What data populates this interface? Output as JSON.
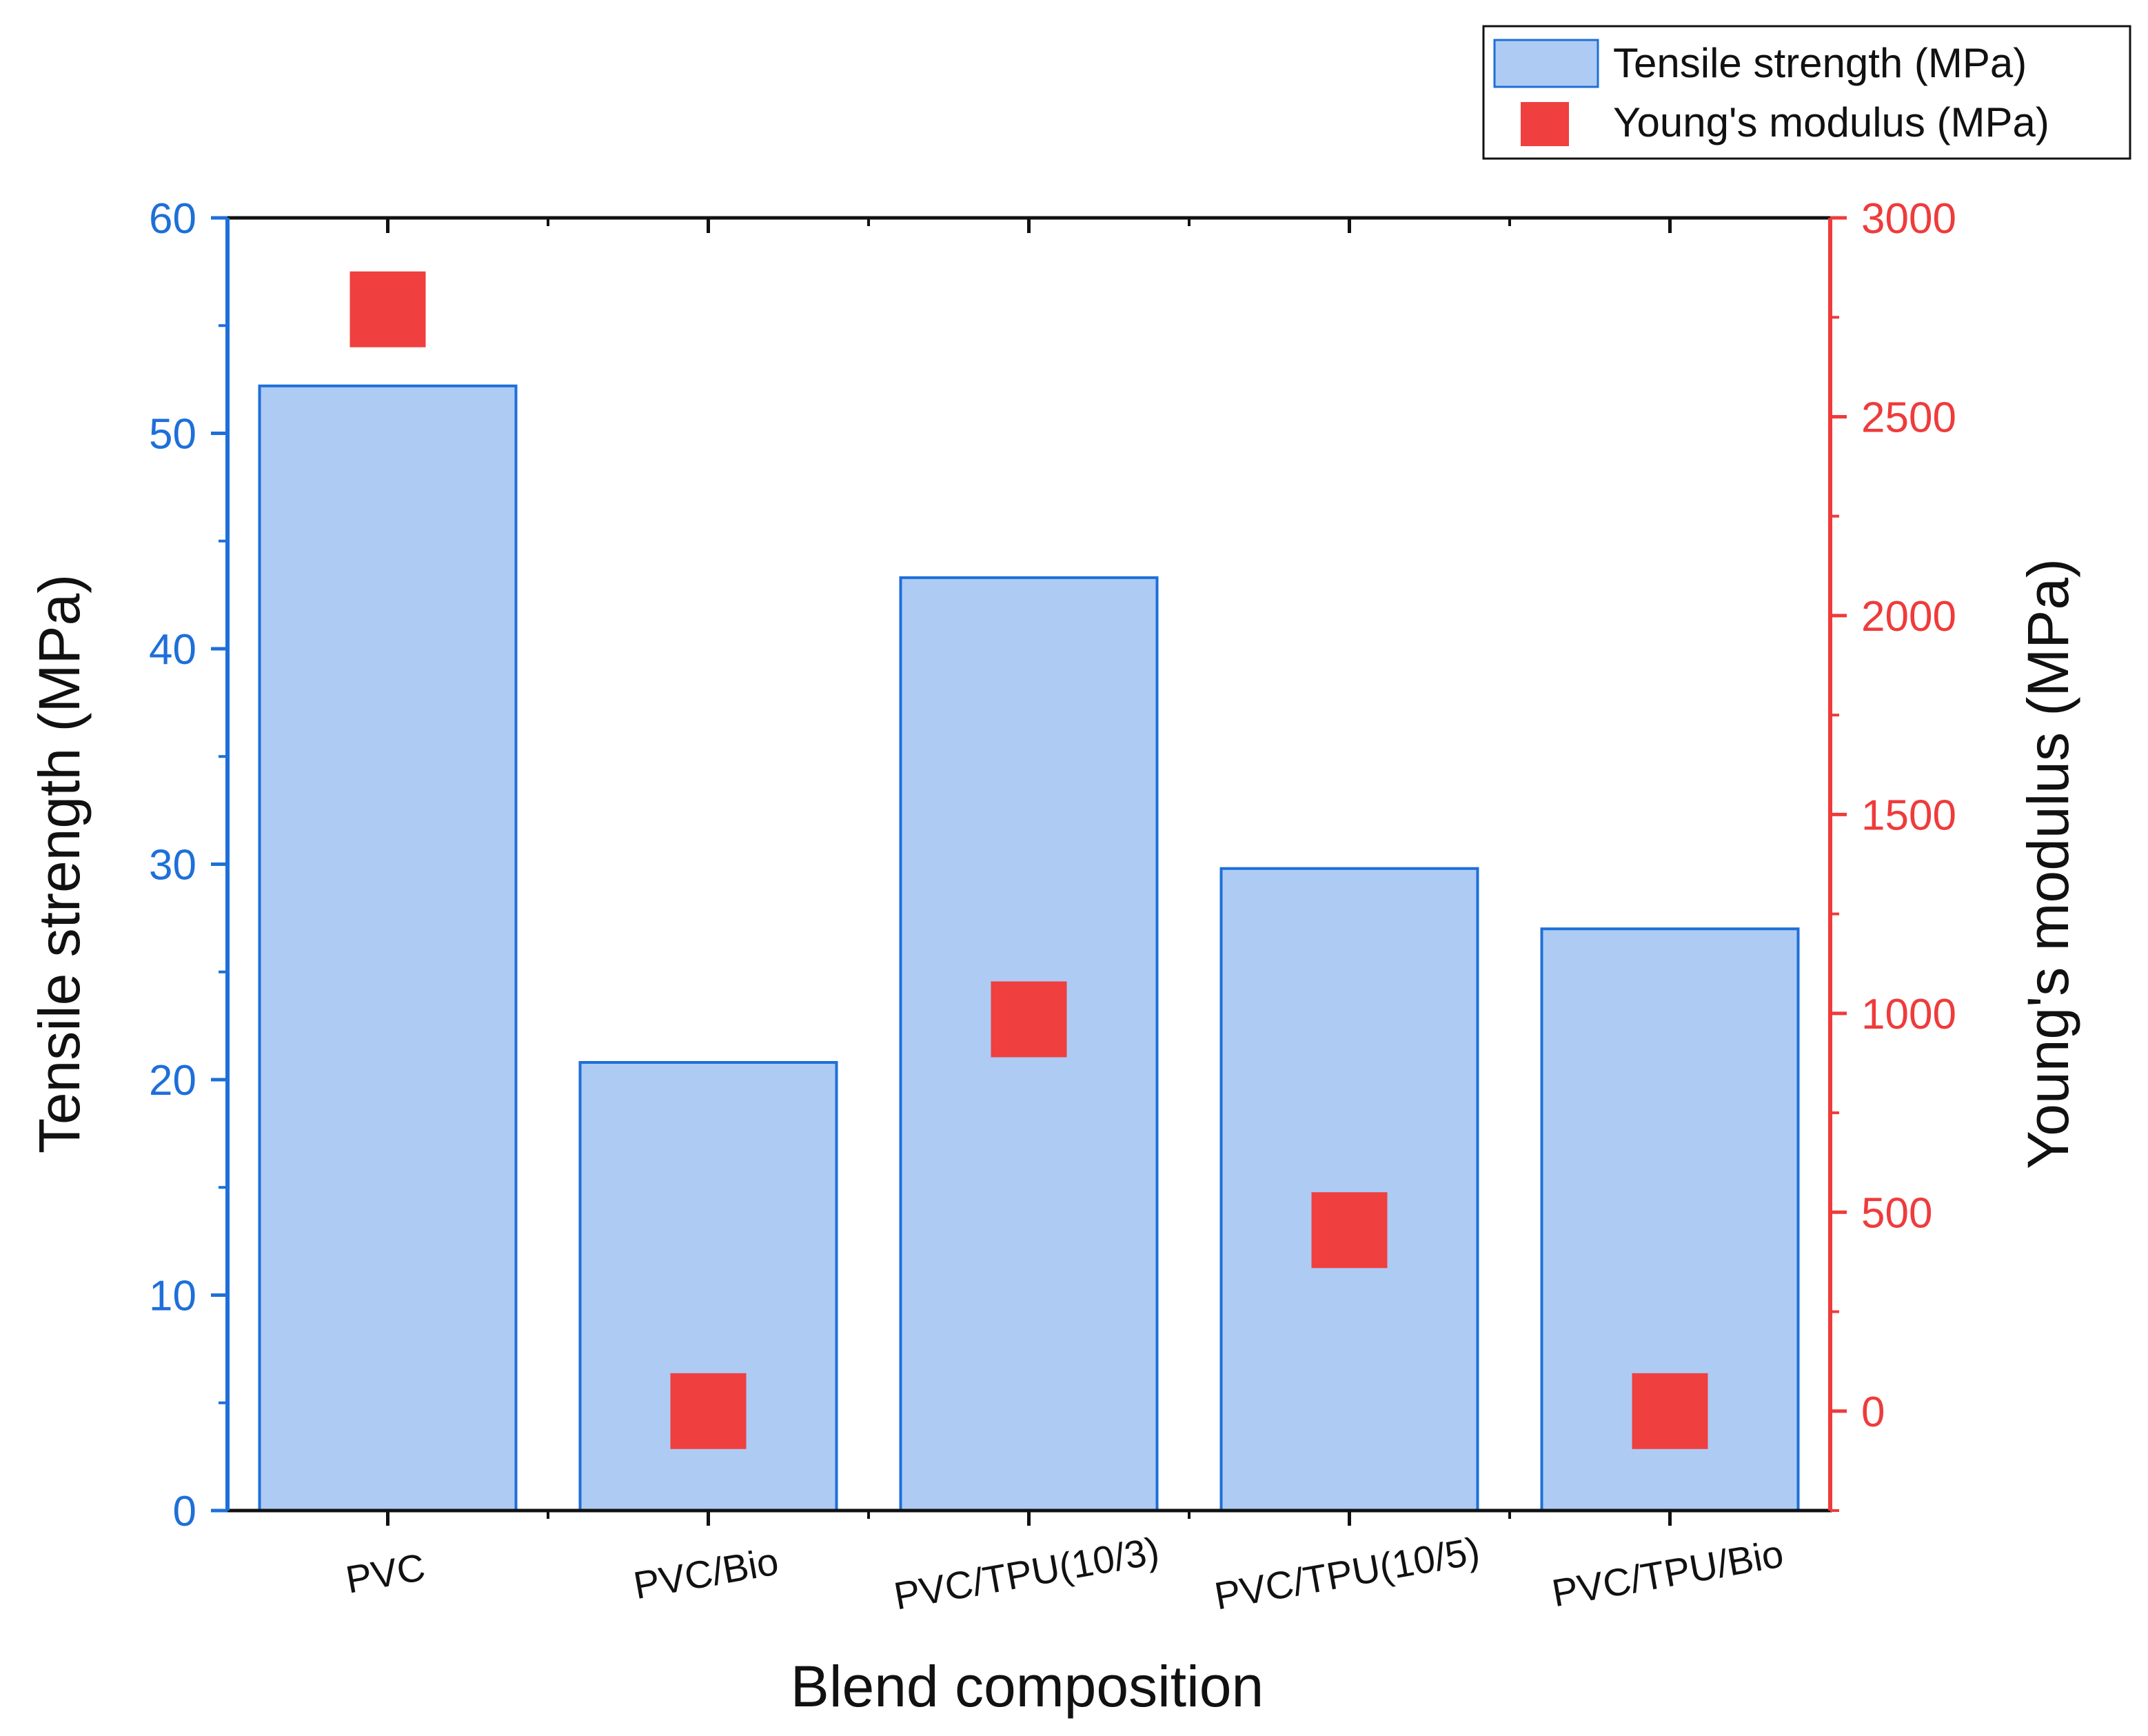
{
  "colors": {
    "left_axis": "#1e6fd9",
    "right_axis": "#ef3b3b",
    "bar_fill": "#aecbf4",
    "bar_stroke": "#1e6fd9",
    "marker_fill": "#ef3f3f",
    "frame": "#111111"
  },
  "chart_data": {
    "type": "bar",
    "title": "",
    "xlabel": "Blend composition",
    "ylabel": "Tensile strength (MPa)",
    "y2label": "Young's modulus (MPa)",
    "categories": [
      "PVC",
      "PVC/Bio",
      "PVC/TPU(10/3)",
      "PVC/TPU(10/5)",
      "PVC/TPU/Bio"
    ],
    "ylim": [
      0,
      60
    ],
    "y2lim": [
      -250,
      3000
    ],
    "yticks": [
      0,
      10,
      20,
      30,
      40,
      50,
      60
    ],
    "y2ticks": [
      0,
      500,
      1000,
      1500,
      2000,
      2500,
      3000
    ],
    "series": [
      {
        "name": "Tensile strength (MPa)",
        "type": "bar",
        "axis": "left",
        "values": [
          52.2,
          20.8,
          43.3,
          29.8,
          27.0
        ]
      },
      {
        "name": "Young's modulus (MPa)",
        "type": "scatter",
        "marker": "square",
        "axis": "right",
        "values": [
          2770,
          0,
          985,
          455,
          0
        ]
      }
    ],
    "legend": {
      "position": "top-right",
      "entries": [
        "Tensile strength (MPa)",
        "Young's modulus (MPa)"
      ]
    },
    "grid": false
  }
}
